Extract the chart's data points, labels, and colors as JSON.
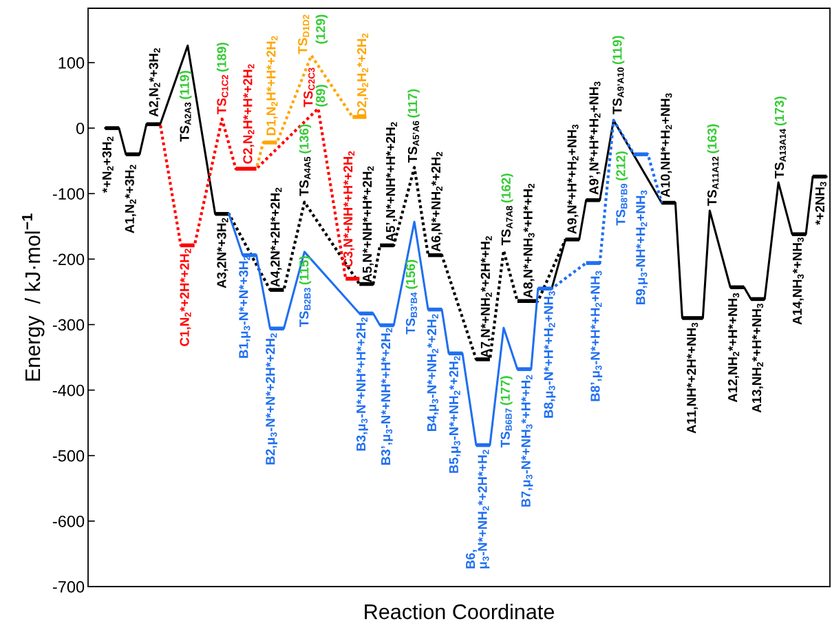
{
  "chart_data": {
    "type": "line",
    "xlabel": "Reaction Coordinate",
    "ylabel": "Energy  / kJ·mol$^{−1}$",
    "ylim": [
      -700,
      183
    ],
    "yticks": [
      -700,
      -600,
      -500,
      -400,
      -300,
      -200,
      -100,
      0,
      100
    ],
    "tick_labels": "y",
    "grid": false,
    "marker": "none",
    "categories": [
      null,
      null,
      null,
      null,
      null,
      null,
      null,
      null,
      null,
      null,
      null,
      null,
      null,
      null,
      null,
      null,
      null,
      null,
      null,
      null,
      null,
      null,
      null,
      null,
      null,
      null,
      null,
      null,
      null,
      null,
      null,
      null,
      null,
      null,
      null,
      null,
      null,
      null,
      null,
      null,
      null,
      null,
      null,
      null,
      null,
      null,
      null,
      null,
      null,
      null,
      null,
      null,
      null,
      null,
      null,
      null,
      null,
      null,
      null,
      null,
      null,
      null,
      null,
      null,
      null,
      null,
      null,
      null,
      null,
      null,
      null,
      null,
      null,
      null,
      null,
      null,
      null,
      null,
      null,
      null,
      null,
      null,
      null,
      null,
      null,
      null,
      null,
      null,
      null,
      null,
      null,
      null,
      null,
      null,
      null,
      null,
      null,
      null,
      null,
      null,
      null,
      null,
      null,
      null,
      null,
      null,
      null,
      null
    ],
    "series": [
      {
        "color": "#000000",
        "line_style": "solid",
        "values": [
          null,
          null,
          0,
          null,
          0,
          -40,
          null,
          -40,
          6,
          null,
          6,
          null,
          null,
          null,
          126,
          null,
          null,
          null,
          -131,
          null,
          -131,
          null,
          null,
          null,
          null,
          null,
          null,
          null,
          null,
          null,
          null,
          null,
          null,
          null,
          null,
          null,
          null,
          null,
          null,
          null,
          null,
          null,
          null,
          null,
          null,
          null,
          null,
          null,
          null,
          null,
          null,
          null,
          null,
          null,
          null,
          null,
          null,
          null,
          null,
          null,
          null,
          null,
          null,
          null,
          null,
          null,
          null,
          null,
          null,
          null,
          null,
          null,
          null,
          null,
          null,
          null,
          null,
          null,
          null,
          null,
          null,
          null,
          null,
          null,
          null,
          null,
          null,
          null,
          null,
          null,
          null,
          null,
          null,
          null,
          null,
          null,
          null,
          null,
          null,
          null,
          null,
          null,
          null,
          null,
          null,
          null,
          null,
          null
        ]
      },
      {
        "color": "#000000",
        "line_style": "dotted",
        "values": [
          null,
          null,
          null,
          null,
          null,
          null,
          null,
          null,
          null,
          null,
          null,
          null,
          null,
          null,
          null,
          null,
          null,
          null,
          null,
          null,
          -131,
          null,
          null,
          null,
          null,
          null,
          -247,
          null,
          -247,
          null,
          null,
          -113,
          null,
          null,
          null,
          null,
          null,
          null,
          null,
          -238,
          null,
          -238,
          -179,
          null,
          -179,
          null,
          null,
          -60,
          null,
          -194,
          null,
          -194,
          null,
          null,
          null,
          null,
          -353,
          null,
          -353,
          null,
          -187,
          null,
          -264,
          null,
          null,
          -264,
          null,
          null,
          null,
          -170,
          null,
          null,
          null,
          null,
          null,
          null,
          null,
          null,
          null,
          null,
          null,
          null,
          null,
          null,
          null,
          null,
          null,
          null,
          null,
          null,
          null,
          null,
          null,
          null,
          null,
          null,
          null,
          null,
          null,
          null,
          null,
          null,
          null,
          null,
          null,
          null,
          null,
          null
        ]
      },
      {
        "color": "#000000",
        "line_style": "solid",
        "values": [
          null,
          null,
          null,
          null,
          null,
          null,
          null,
          null,
          null,
          null,
          null,
          null,
          null,
          null,
          null,
          null,
          null,
          null,
          null,
          null,
          null,
          null,
          null,
          null,
          null,
          null,
          null,
          null,
          null,
          null,
          null,
          null,
          null,
          null,
          null,
          null,
          null,
          null,
          null,
          null,
          null,
          null,
          null,
          null,
          null,
          null,
          null,
          null,
          null,
          null,
          null,
          null,
          null,
          null,
          null,
          null,
          null,
          null,
          null,
          null,
          null,
          null,
          null,
          null,
          null,
          null,
          null,
          -245,
          null,
          -170,
          null,
          -170,
          -110,
          null,
          -110,
          null,
          12,
          null,
          null,
          null,
          null,
          null,
          null,
          -114,
          null,
          -114,
          -290,
          null,
          null,
          -290,
          -126,
          null,
          null,
          -243,
          null,
          -243,
          -261,
          null,
          -261,
          null,
          -83,
          null,
          -162,
          null,
          -162,
          -74,
          null,
          -74
        ]
      },
      {
        "color": "#ff0000",
        "line_style": "dotted",
        "values": [
          null,
          null,
          null,
          null,
          null,
          null,
          null,
          null,
          null,
          null,
          6,
          null,
          null,
          -179,
          null,
          -179,
          null,
          null,
          null,
          14,
          null,
          -62,
          null,
          null,
          -62,
          null,
          null,
          null,
          null,
          null,
          null,
          null,
          null,
          30,
          null,
          null,
          null,
          -230,
          null,
          -230,
          null,
          null,
          null,
          null,
          null,
          null,
          null,
          null,
          null,
          null,
          null,
          null,
          null,
          null,
          null,
          null,
          null,
          null,
          null,
          null,
          null,
          null,
          null,
          null,
          null,
          null,
          null,
          null,
          null,
          null,
          null,
          null,
          null,
          null,
          null,
          null,
          null,
          null,
          null,
          null,
          null,
          null,
          null,
          null,
          null,
          null,
          null,
          null,
          null,
          null,
          null,
          null,
          null,
          null,
          null,
          null,
          null,
          null,
          null,
          null,
          null,
          null,
          null,
          null,
          null,
          null,
          null,
          null
        ]
      },
      {
        "color": "#ffa500",
        "line_style": "dotted",
        "values": [
          null,
          null,
          null,
          null,
          null,
          null,
          null,
          null,
          null,
          null,
          null,
          null,
          null,
          null,
          null,
          null,
          null,
          null,
          null,
          null,
          null,
          null,
          null,
          null,
          -62,
          -22,
          null,
          -22,
          null,
          null,
          null,
          null,
          111,
          null,
          null,
          null,
          null,
          null,
          17,
          null,
          17,
          null,
          null,
          null,
          null,
          null,
          null,
          null,
          null,
          null,
          null,
          null,
          null,
          null,
          null,
          null,
          null,
          null,
          null,
          null,
          null,
          null,
          null,
          null,
          null,
          null,
          null,
          null,
          null,
          null,
          null,
          null,
          null,
          null,
          null,
          null,
          null,
          null,
          null,
          null,
          null,
          null,
          null,
          null,
          null,
          null,
          null,
          null,
          null,
          null,
          null,
          null,
          null,
          null,
          null,
          null,
          null,
          null,
          null,
          null,
          null,
          null,
          null,
          null,
          null,
          null,
          null,
          null
        ]
      },
      {
        "color": "#1f6ff0",
        "line_style": "solid",
        "values": [
          null,
          null,
          null,
          null,
          null,
          null,
          null,
          null,
          null,
          null,
          null,
          null,
          null,
          null,
          null,
          null,
          null,
          null,
          null,
          null,
          -131,
          null,
          -194,
          null,
          -194,
          null,
          -306,
          null,
          -306,
          null,
          null,
          -189,
          null,
          null,
          null,
          null,
          null,
          null,
          null,
          -283,
          null,
          -283,
          -301,
          null,
          -301,
          null,
          null,
          -143,
          null,
          -277,
          null,
          -277,
          -344,
          null,
          -344,
          null,
          -484,
          null,
          -484,
          null,
          -305,
          null,
          -368,
          null,
          -368,
          -245,
          null,
          -245,
          null,
          null,
          null,
          null,
          null,
          null,
          null,
          null,
          null,
          null,
          null,
          null,
          null,
          null,
          null,
          null,
          null,
          null,
          null,
          null,
          null,
          null,
          null,
          null,
          null,
          null,
          null,
          null,
          null,
          null,
          null,
          null,
          null,
          null,
          null,
          null,
          null,
          null,
          null,
          null
        ]
      },
      {
        "color": "#1f6ff0",
        "line_style": "dotted",
        "values": [
          null,
          null,
          null,
          null,
          null,
          null,
          null,
          null,
          null,
          null,
          null,
          null,
          null,
          null,
          null,
          null,
          null,
          null,
          null,
          null,
          null,
          null,
          null,
          null,
          null,
          null,
          null,
          null,
          null,
          null,
          null,
          null,
          null,
          null,
          null,
          null,
          null,
          null,
          null,
          null,
          null,
          null,
          null,
          null,
          null,
          null,
          null,
          null,
          null,
          null,
          null,
          null,
          null,
          null,
          null,
          null,
          null,
          null,
          null,
          null,
          null,
          null,
          null,
          null,
          null,
          null,
          null,
          -245,
          null,
          null,
          null,
          null,
          -206,
          null,
          -206,
          null,
          12,
          null,
          null,
          -40,
          null,
          -40,
          null,
          -114,
          null,
          null,
          null,
          null,
          null,
          null,
          null,
          null,
          null,
          null,
          null,
          null,
          null,
          null,
          null,
          null,
          null,
          null,
          null,
          null,
          null,
          null,
          null,
          null
        ]
      }
    ],
    "annotations": [
      "*+N$_{2}$+3H$_{2}$",
      "A1,N$_{2}$*+3H$_{2}$",
      "A2,N$_{2}$*+3H$_{2}$",
      "TS$_{A2A3}$",
      "(119)",
      "A3,2N*+3H$_{2}$",
      "A4,2N*+2H*+2H$_{2}$",
      "TS$_{A4A5}$",
      "(136)",
      "A5,N*+NH*+H*+2H$_{2}$",
      "A5’,N*+NH*+H*+2H$_{2}$",
      "TS$_{A5’A6}$",
      "(117)",
      "A6,N*+NH$_{2}$*+2H$_{2}$",
      "A7,N*+NH$_{2}$*+2H*+H$_{2}$",
      "TS$_{A7A8}$",
      "(162)",
      "A8,N*+NH$_{3}$*+H*+H$_{2}$",
      "A9,N*+H*+H$_{2}$+NH$_{3}$",
      "A9’,N*+H*+H$_{2}$+NH$_{3}$",
      "TS$_{A9’A10}$",
      "(119)",
      "A10,NH*+H$_{2}$+NH$_{3}$",
      "A11,NH*+2H*+NH$_{3}$",
      "TS$_{A11A12}$",
      "(163)",
      "A12,NH$_{2}$*+H*+NH$_{3}$",
      "A13,NH$_{2}$*+H*+NH$_{3}$",
      "TS$_{A13A14}$",
      "(173)",
      "A14,NH$_{3}$*+NH$_{3}$",
      "*+2NH$_{3}$",
      "C1,N$_{2}$*+2H*+2H$_{2}$",
      "TS$_{C1C2}$",
      "(189)",
      "C2,N$_{2}$H*+H*+2H$_{2}$",
      "TS$_{C2C3}$",
      "(89)",
      "C3,N*+NH*+H*+2H$_{2}$",
      "D1,N$_{2}$H*+H*+2H$_{2}$",
      "TS$_{D1D2}$",
      "(129)",
      "D2,N$_{2}$H$_{2}$*+2H$_{2}$",
      "B1,μ$_{3}$-N*+N*+3H$_{2}$",
      "B2,μ$_{3}$-N*+N*+2H*+2H$_{2}$",
      "TS$_{B2B3}$",
      "(115)",
      "B3,μ$_{3}$-N*+NH*+H*+2H$_{2}$",
      "B3’,μ$_{3}$-N*+NH*+H*+2H$_{2}$",
      "TS$_{B3’B4}$",
      "(156)",
      "B4,μ$_{3}$-N*+NH$_{2}$*+2H$_{2}$",
      "B5,μ$_{3}$-N*+NH$_{2}$*+2H$_{2}$",
      "B6,\nμ$_{3}$-N*+NH$_{2}$*+2H*+H$_{2}$",
      "TS$_{B6B7}$",
      "(177)",
      "B7,μ$_{3}$-N*+NH$_{3}$*+H*+H$_{2}$",
      "B8,μ$_{3}$-N*+H*+H$_{2}$+NH$_{3}$",
      "B8’,μ$_{3}$-N*+H*+H$_{2}$+NH$_{3}$",
      "TS$_{B8’B9}$",
      "(212)",
      "B9,μ$_{3}$-NH*+H$_{2}$+NH$_{3}$"
    ]
  }
}
